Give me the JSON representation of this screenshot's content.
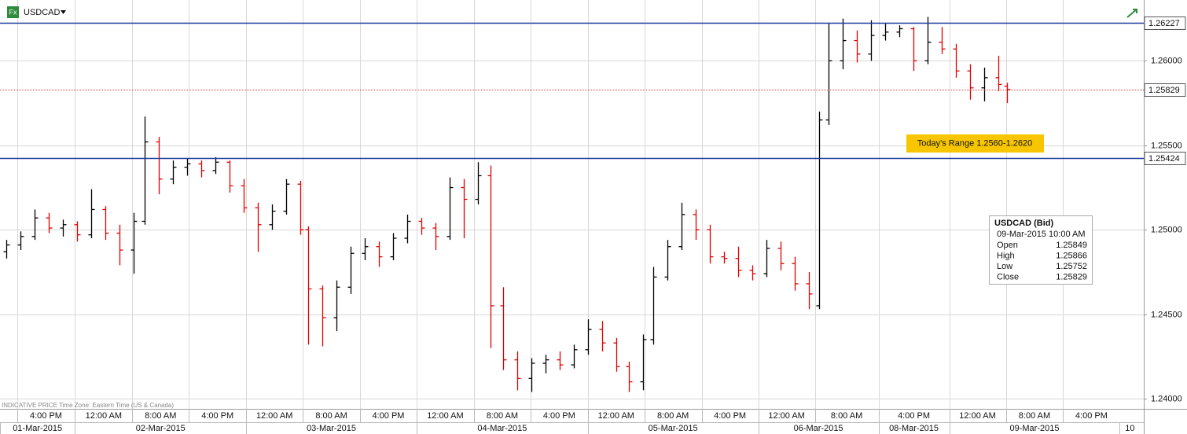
{
  "chart_data": {
    "type": "ohlc",
    "symbol": "USDCAD",
    "icon": "Fx",
    "footnote": "INDICATIVE PRICE   Time Zone: Eastern Time (US & Canada)",
    "up_color": "#000000",
    "down_color": "#e00000",
    "xlim": [
      0,
      161.7
    ],
    "ylim": [
      1.2394,
      1.2636
    ],
    "yticks": [
      {
        "value": 1.26,
        "label": "1.26000"
      },
      {
        "value": 1.255,
        "label": "1.25500"
      },
      {
        "value": 1.25,
        "label": "1.25000"
      },
      {
        "value": 1.245,
        "label": "1.24500"
      },
      {
        "value": 1.24,
        "label": "1.24000"
      }
    ],
    "xticks": [
      {
        "value": 2.4,
        "label": "4:00 PM"
      },
      {
        "value": 10.6,
        "label": "12:00 AM"
      },
      {
        "value": 18.7,
        "label": "8:00 AM"
      },
      {
        "value": 26.7,
        "label": "4:00 PM"
      },
      {
        "value": 34.8,
        "label": "12:00 AM"
      },
      {
        "value": 42.8,
        "label": "8:00 AM"
      },
      {
        "value": 50.9,
        "label": "4:00 PM"
      },
      {
        "value": 58.9,
        "label": "12:00 AM"
      },
      {
        "value": 67,
        "label": "8:00 AM"
      },
      {
        "value": 75,
        "label": "4:00 PM"
      },
      {
        "value": 83.1,
        "label": "12:00 AM"
      },
      {
        "value": 91.1,
        "label": "8:00 AM"
      },
      {
        "value": 99.2,
        "label": "4:00 PM"
      },
      {
        "value": 107.2,
        "label": "12:00 AM"
      },
      {
        "value": 115.2,
        "label": "8:00 AM"
      },
      {
        "value": 124.2,
        "label": "4:00 PM"
      },
      {
        "value": 134.2,
        "label": "12:00 AM"
      },
      {
        "value": 142.2,
        "label": "8:00 AM"
      },
      {
        "value": 150.3,
        "label": "4:00 PM"
      }
    ],
    "date_ticks": [
      {
        "value": 0,
        "label": "01-Mar-2015"
      },
      {
        "value": 10.6,
        "label": "02-Mar-2015"
      },
      {
        "value": 34.8,
        "label": "03-Mar-2015"
      },
      {
        "value": 58.9,
        "label": "04-Mar-2015"
      },
      {
        "value": 83.1,
        "label": "05-Mar-2015"
      },
      {
        "value": 107.2,
        "label": "06-Mar-2015"
      },
      {
        "value": 124.2,
        "label": "08-Mar-2015"
      },
      {
        "value": 134.2,
        "label": "09-Mar-2015"
      },
      {
        "value": 158.3,
        "label": "10"
      }
    ],
    "hlines": [
      {
        "value": 1.26227,
        "color": "#1a3a9c",
        "style": "solid"
      },
      {
        "value": 1.25424,
        "color": "#1a3a9c",
        "style": "solid"
      },
      {
        "value": 1.25829,
        "color": "#d04040",
        "style": "dotted"
      }
    ],
    "range_note": "Today's Range 1.2560-1.2620",
    "info": {
      "title": "USDCAD (Bid)",
      "time": "09-Mar-2015 10:00 AM",
      "rows": [
        [
          "Open",
          1.25849
        ],
        [
          "High",
          1.25866
        ],
        [
          "Low",
          1.25752
        ],
        [
          "Close",
          1.25829
        ]
      ]
    },
    "bars": [
      {
        "x": 0.9,
        "open": 1.2487,
        "high": 1.2494,
        "low": 1.2483,
        "close": 1.2491
      },
      {
        "x": 2.9,
        "open": 1.2491,
        "high": 1.2499,
        "low": 1.2488,
        "close": 1.2496
      },
      {
        "x": 4.9,
        "open": 1.2496,
        "high": 1.2512,
        "low": 1.2494,
        "close": 1.2507
      },
      {
        "x": 6.9,
        "open": 1.2507,
        "high": 1.251,
        "low": 1.2498,
        "close": 1.2501
      },
      {
        "x": 8.9,
        "open": 1.2501,
        "high": 1.2506,
        "low": 1.2496,
        "close": 1.2503
      },
      {
        "x": 10.9,
        "open": 1.2503,
        "high": 1.2505,
        "low": 1.2493,
        "close": 1.2497
      },
      {
        "x": 12.9,
        "open": 1.2497,
        "high": 1.2524,
        "low": 1.2495,
        "close": 1.2512
      },
      {
        "x": 14.9,
        "open": 1.2512,
        "high": 1.2514,
        "low": 1.2494,
        "close": 1.2498
      },
      {
        "x": 16.9,
        "open": 1.2498,
        "high": 1.2503,
        "low": 1.2479,
        "close": 1.2488
      },
      {
        "x": 18.9,
        "open": 1.2488,
        "high": 1.251,
        "low": 1.2474,
        "close": 1.2505
      },
      {
        "x": 20.4,
        "open": 1.2505,
        "high": 1.2567,
        "low": 1.2503,
        "close": 1.2552
      },
      {
        "x": 22.4,
        "open": 1.2552,
        "high": 1.2555,
        "low": 1.2521,
        "close": 1.253
      },
      {
        "x": 24.4,
        "open": 1.253,
        "high": 1.2541,
        "low": 1.2527,
        "close": 1.2537
      },
      {
        "x": 26.4,
        "open": 1.2537,
        "high": 1.2542,
        "low": 1.2532,
        "close": 1.2539
      },
      {
        "x": 28.4,
        "open": 1.2539,
        "high": 1.2541,
        "low": 1.2531,
        "close": 1.2535
      },
      {
        "x": 30.4,
        "open": 1.2535,
        "high": 1.2543,
        "low": 1.2533,
        "close": 1.254
      },
      {
        "x": 32.4,
        "open": 1.254,
        "high": 1.2541,
        "low": 1.2522,
        "close": 1.2526
      },
      {
        "x": 34.4,
        "open": 1.2526,
        "high": 1.253,
        "low": 1.251,
        "close": 1.2513
      },
      {
        "x": 36.4,
        "open": 1.2513,
        "high": 1.2516,
        "low": 1.2487,
        "close": 1.2503
      },
      {
        "x": 38.4,
        "open": 1.2503,
        "high": 1.2515,
        "low": 1.25,
        "close": 1.2511
      },
      {
        "x": 40.4,
        "open": 1.2511,
        "high": 1.253,
        "low": 1.2509,
        "close": 1.2527
      },
      {
        "x": 42.4,
        "open": 1.2527,
        "high": 1.2529,
        "low": 1.2497,
        "close": 1.25
      },
      {
        "x": 43.6,
        "open": 1.25,
        "high": 1.2502,
        "low": 1.2432,
        "close": 1.2465
      },
      {
        "x": 45.6,
        "open": 1.2465,
        "high": 1.2467,
        "low": 1.2431,
        "close": 1.2448
      },
      {
        "x": 47.6,
        "open": 1.2448,
        "high": 1.247,
        "low": 1.244,
        "close": 1.2466
      },
      {
        "x": 49.6,
        "open": 1.2466,
        "high": 1.249,
        "low": 1.2462,
        "close": 1.2486
      },
      {
        "x": 51.6,
        "open": 1.2486,
        "high": 1.2495,
        "low": 1.2482,
        "close": 1.249
      },
      {
        "x": 53.6,
        "open": 1.249,
        "high": 1.2493,
        "low": 1.2478,
        "close": 1.2484
      },
      {
        "x": 55.6,
        "open": 1.2484,
        "high": 1.2498,
        "low": 1.2482,
        "close": 1.2495
      },
      {
        "x": 57.6,
        "open": 1.2495,
        "high": 1.2509,
        "low": 1.2492,
        "close": 1.2505
      },
      {
        "x": 59.6,
        "open": 1.2505,
        "high": 1.2507,
        "low": 1.2497,
        "close": 1.2501
      },
      {
        "x": 61.6,
        "open": 1.2501,
        "high": 1.2504,
        "low": 1.2488,
        "close": 1.2496
      },
      {
        "x": 63.6,
        "open": 1.2496,
        "high": 1.2531,
        "low": 1.2494,
        "close": 1.2525
      },
      {
        "x": 65.6,
        "open": 1.2525,
        "high": 1.253,
        "low": 1.2495,
        "close": 1.2518
      },
      {
        "x": 67.6,
        "open": 1.2518,
        "high": 1.254,
        "low": 1.2515,
        "close": 1.2532
      },
      {
        "x": 69.3,
        "open": 1.2532,
        "high": 1.2538,
        "low": 1.243,
        "close": 1.2455
      },
      {
        "x": 71.1,
        "open": 1.2455,
        "high": 1.2466,
        "low": 1.2417,
        "close": 1.2423
      },
      {
        "x": 73.1,
        "open": 1.2423,
        "high": 1.2428,
        "low": 1.2405,
        "close": 1.2412
      },
      {
        "x": 75.1,
        "open": 1.2412,
        "high": 1.2424,
        "low": 1.2404,
        "close": 1.2421
      },
      {
        "x": 77.1,
        "open": 1.2421,
        "high": 1.2426,
        "low": 1.2415,
        "close": 1.2423
      },
      {
        "x": 79.1,
        "open": 1.2423,
        "high": 1.2428,
        "low": 1.2417,
        "close": 1.242
      },
      {
        "x": 81.1,
        "open": 1.242,
        "high": 1.2432,
        "low": 1.2418,
        "close": 1.2429
      },
      {
        "x": 83.1,
        "open": 1.2429,
        "high": 1.2447,
        "low": 1.2426,
        "close": 1.2441
      },
      {
        "x": 85.1,
        "open": 1.2441,
        "high": 1.2446,
        "low": 1.2428,
        "close": 1.2433
      },
      {
        "x": 87.1,
        "open": 1.2433,
        "high": 1.2436,
        "low": 1.2416,
        "close": 1.2419
      },
      {
        "x": 88.9,
        "open": 1.2419,
        "high": 1.2422,
        "low": 1.2404,
        "close": 1.241
      },
      {
        "x": 90.9,
        "open": 1.241,
        "high": 1.2438,
        "low": 1.2405,
        "close": 1.2435
      },
      {
        "x": 92.4,
        "open": 1.2435,
        "high": 1.2478,
        "low": 1.2432,
        "close": 1.2472
      },
      {
        "x": 94.4,
        "open": 1.2472,
        "high": 1.2494,
        "low": 1.247,
        "close": 1.249
      },
      {
        "x": 96.4,
        "open": 1.249,
        "high": 1.2516,
        "low": 1.2488,
        "close": 1.2509
      },
      {
        "x": 98.4,
        "open": 1.2509,
        "high": 1.2512,
        "low": 1.2494,
        "close": 1.25
      },
      {
        "x": 100.4,
        "open": 1.25,
        "high": 1.2503,
        "low": 1.248,
        "close": 1.2484
      },
      {
        "x": 102.4,
        "open": 1.2484,
        "high": 1.2487,
        "low": 1.248,
        "close": 1.2483
      },
      {
        "x": 104.4,
        "open": 1.2483,
        "high": 1.249,
        "low": 1.2472,
        "close": 1.2476
      },
      {
        "x": 106.4,
        "open": 1.2476,
        "high": 1.2479,
        "low": 1.247,
        "close": 1.2474
      },
      {
        "x": 108.4,
        "open": 1.2474,
        "high": 1.2494,
        "low": 1.2472,
        "close": 1.2489
      },
      {
        "x": 110.4,
        "open": 1.2489,
        "high": 1.2493,
        "low": 1.2476,
        "close": 1.248
      },
      {
        "x": 112.4,
        "open": 1.248,
        "high": 1.2484,
        "low": 1.2464,
        "close": 1.2468
      },
      {
        "x": 114.4,
        "open": 1.2468,
        "high": 1.2475,
        "low": 1.2453,
        "close": 1.2462
      },
      {
        "x": 115.8,
        "open": 1.2455,
        "high": 1.257,
        "low": 1.2453,
        "close": 1.2565
      },
      {
        "x": 117.1,
        "open": 1.2565,
        "high": 1.2622,
        "low": 1.2562,
        "close": 1.26
      },
      {
        "x": 119.1,
        "open": 1.26,
        "high": 1.2625,
        "low": 1.2595,
        "close": 1.2612
      },
      {
        "x": 121.1,
        "open": 1.2612,
        "high": 1.2618,
        "low": 1.2599,
        "close": 1.2604
      },
      {
        "x": 123.1,
        "open": 1.2604,
        "high": 1.2624,
        "low": 1.26,
        "close": 1.2615
      },
      {
        "x": 125.1,
        "open": 1.2615,
        "high": 1.2622,
        "low": 1.2612,
        "close": 1.2617
      },
      {
        "x": 127.1,
        "open": 1.2617,
        "high": 1.2621,
        "low": 1.2614,
        "close": 1.2619
      },
      {
        "x": 129.1,
        "open": 1.2619,
        "high": 1.262,
        "low": 1.2594,
        "close": 1.26
      },
      {
        "x": 131.1,
        "open": 1.26,
        "high": 1.2626,
        "low": 1.2598,
        "close": 1.2611
      },
      {
        "x": 133.1,
        "open": 1.2611,
        "high": 1.262,
        "low": 1.2604,
        "close": 1.2607
      },
      {
        "x": 135.1,
        "open": 1.2607,
        "high": 1.261,
        "low": 1.259,
        "close": 1.2594
      },
      {
        "x": 137.1,
        "open": 1.2594,
        "high": 1.2598,
        "low": 1.2577,
        "close": 1.2584
      },
      {
        "x": 139.1,
        "open": 1.2584,
        "high": 1.2596,
        "low": 1.2576,
        "close": 1.259
      },
      {
        "x": 141.1,
        "open": 1.259,
        "high": 1.2603,
        "low": 1.2582,
        "close": 1.2586
      },
      {
        "x": 142.4,
        "open": 1.2585,
        "high": 1.2587,
        "low": 1.2575,
        "close": 1.2583
      }
    ]
  }
}
